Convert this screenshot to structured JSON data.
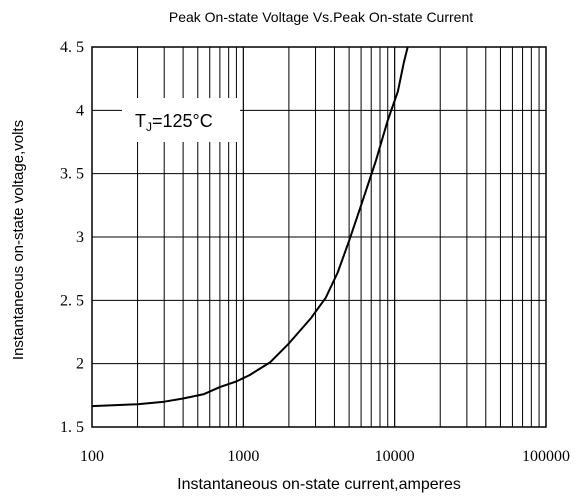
{
  "chart_data": {
    "type": "line",
    "title": "Peak On-state Voltage Vs.Peak On-state Current",
    "xlabel": "Instantaneous on-state current,amperes",
    "ylabel": "Instantaneous on-state voltage,volts",
    "x_scale": "log",
    "xlim": [
      100,
      100000
    ],
    "ylim": [
      1.5,
      4.5
    ],
    "x_ticks": [
      "100",
      "1000",
      "10000",
      "100000"
    ],
    "y_ticks": [
      "1. 5",
      "2",
      "2. 5",
      "3",
      "3. 5",
      "4",
      "4. 5"
    ],
    "grid": true,
    "annotation": {
      "base": "T",
      "sub": "J",
      "rest": "=125°C"
    },
    "series": [
      {
        "x": [
          100,
          200,
          300,
          400,
          550,
          700,
          900,
          1100,
          1500,
          2000,
          2800,
          3500,
          4200,
          5000,
          6000,
          7500,
          9000,
          10500,
          11500,
          12200
        ],
        "y": [
          1.665,
          1.68,
          1.7,
          1.725,
          1.76,
          1.815,
          1.86,
          1.91,
          2.01,
          2.16,
          2.36,
          2.52,
          2.72,
          2.97,
          3.25,
          3.6,
          3.92,
          4.15,
          4.38,
          4.5
        ],
        "color": "#000000"
      }
    ]
  }
}
